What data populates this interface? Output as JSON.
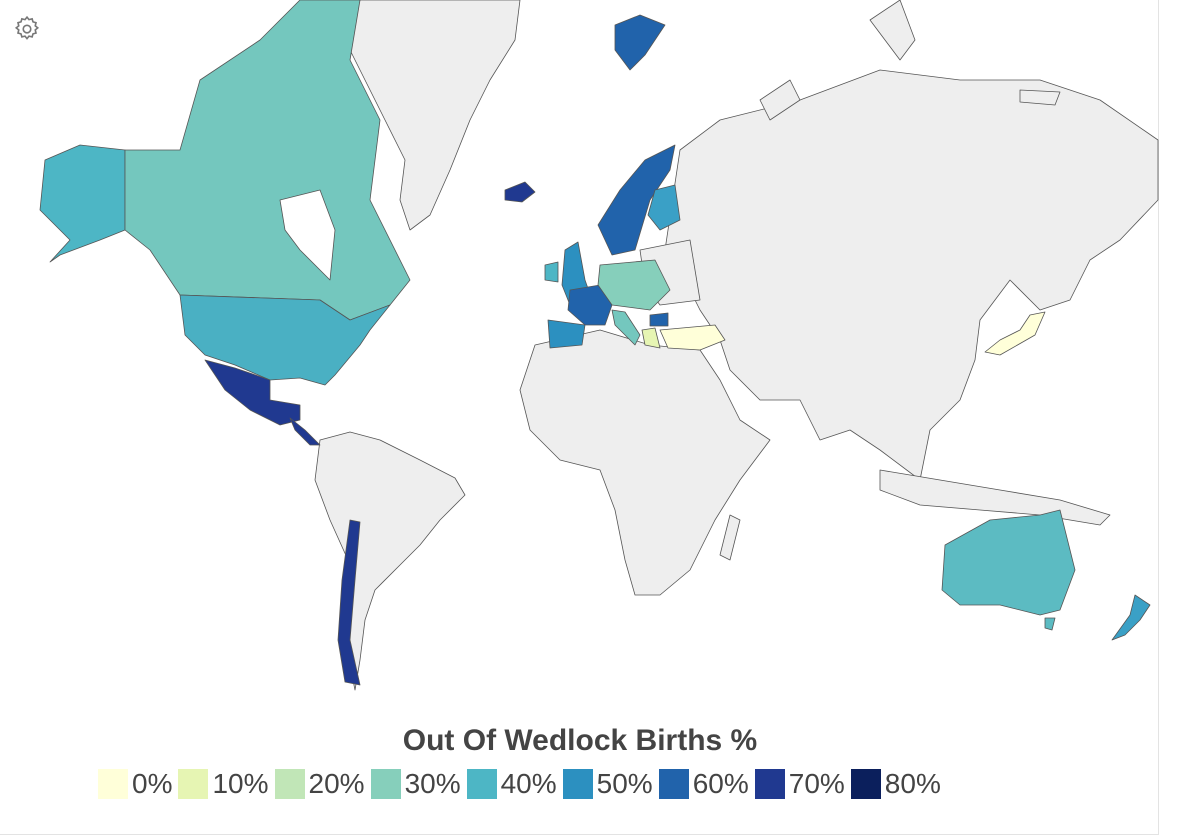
{
  "legend": {
    "title": "Out Of Wedlock Births %",
    "items": [
      {
        "label": "0%",
        "color": "#ffffd9"
      },
      {
        "label": "10%",
        "color": "#e6f5b3"
      },
      {
        "label": "20%",
        "color": "#c1e6b7"
      },
      {
        "label": "30%",
        "color": "#86cfbb"
      },
      {
        "label": "40%",
        "color": "#4db6c5"
      },
      {
        "label": "50%",
        "color": "#2c90c0"
      },
      {
        "label": "60%",
        "color": "#2163ab"
      },
      {
        "label": "70%",
        "color": "#203990"
      },
      {
        "label": "80%",
        "color": "#0b1f5c"
      }
    ]
  },
  "no_data_color": "#eeeeee",
  "toolbar": {
    "settings_icon": "gear-icon"
  },
  "map_data": {
    "Canada": 33,
    "Alaska (United States)": 40,
    "United States": 40,
    "Mexico": 69,
    "Central America": 70,
    "Chile": 73,
    "Iceland": 70,
    "Norway": 56,
    "Sweden": 55,
    "Finland": 44,
    "Denmark": 54,
    "United Kingdom": 48,
    "Ireland": 38,
    "France": 60,
    "Spain": 47,
    "Portugal": 55,
    "Germany": 33,
    "Poland": 25,
    "Italy": 33,
    "Greece": 10,
    "Turkey": 3,
    "Bulgaria": 59,
    "Japan": 2,
    "Australia": 35,
    "New Zealand": 48,
    "Svalbard (Norway)": 56
  }
}
